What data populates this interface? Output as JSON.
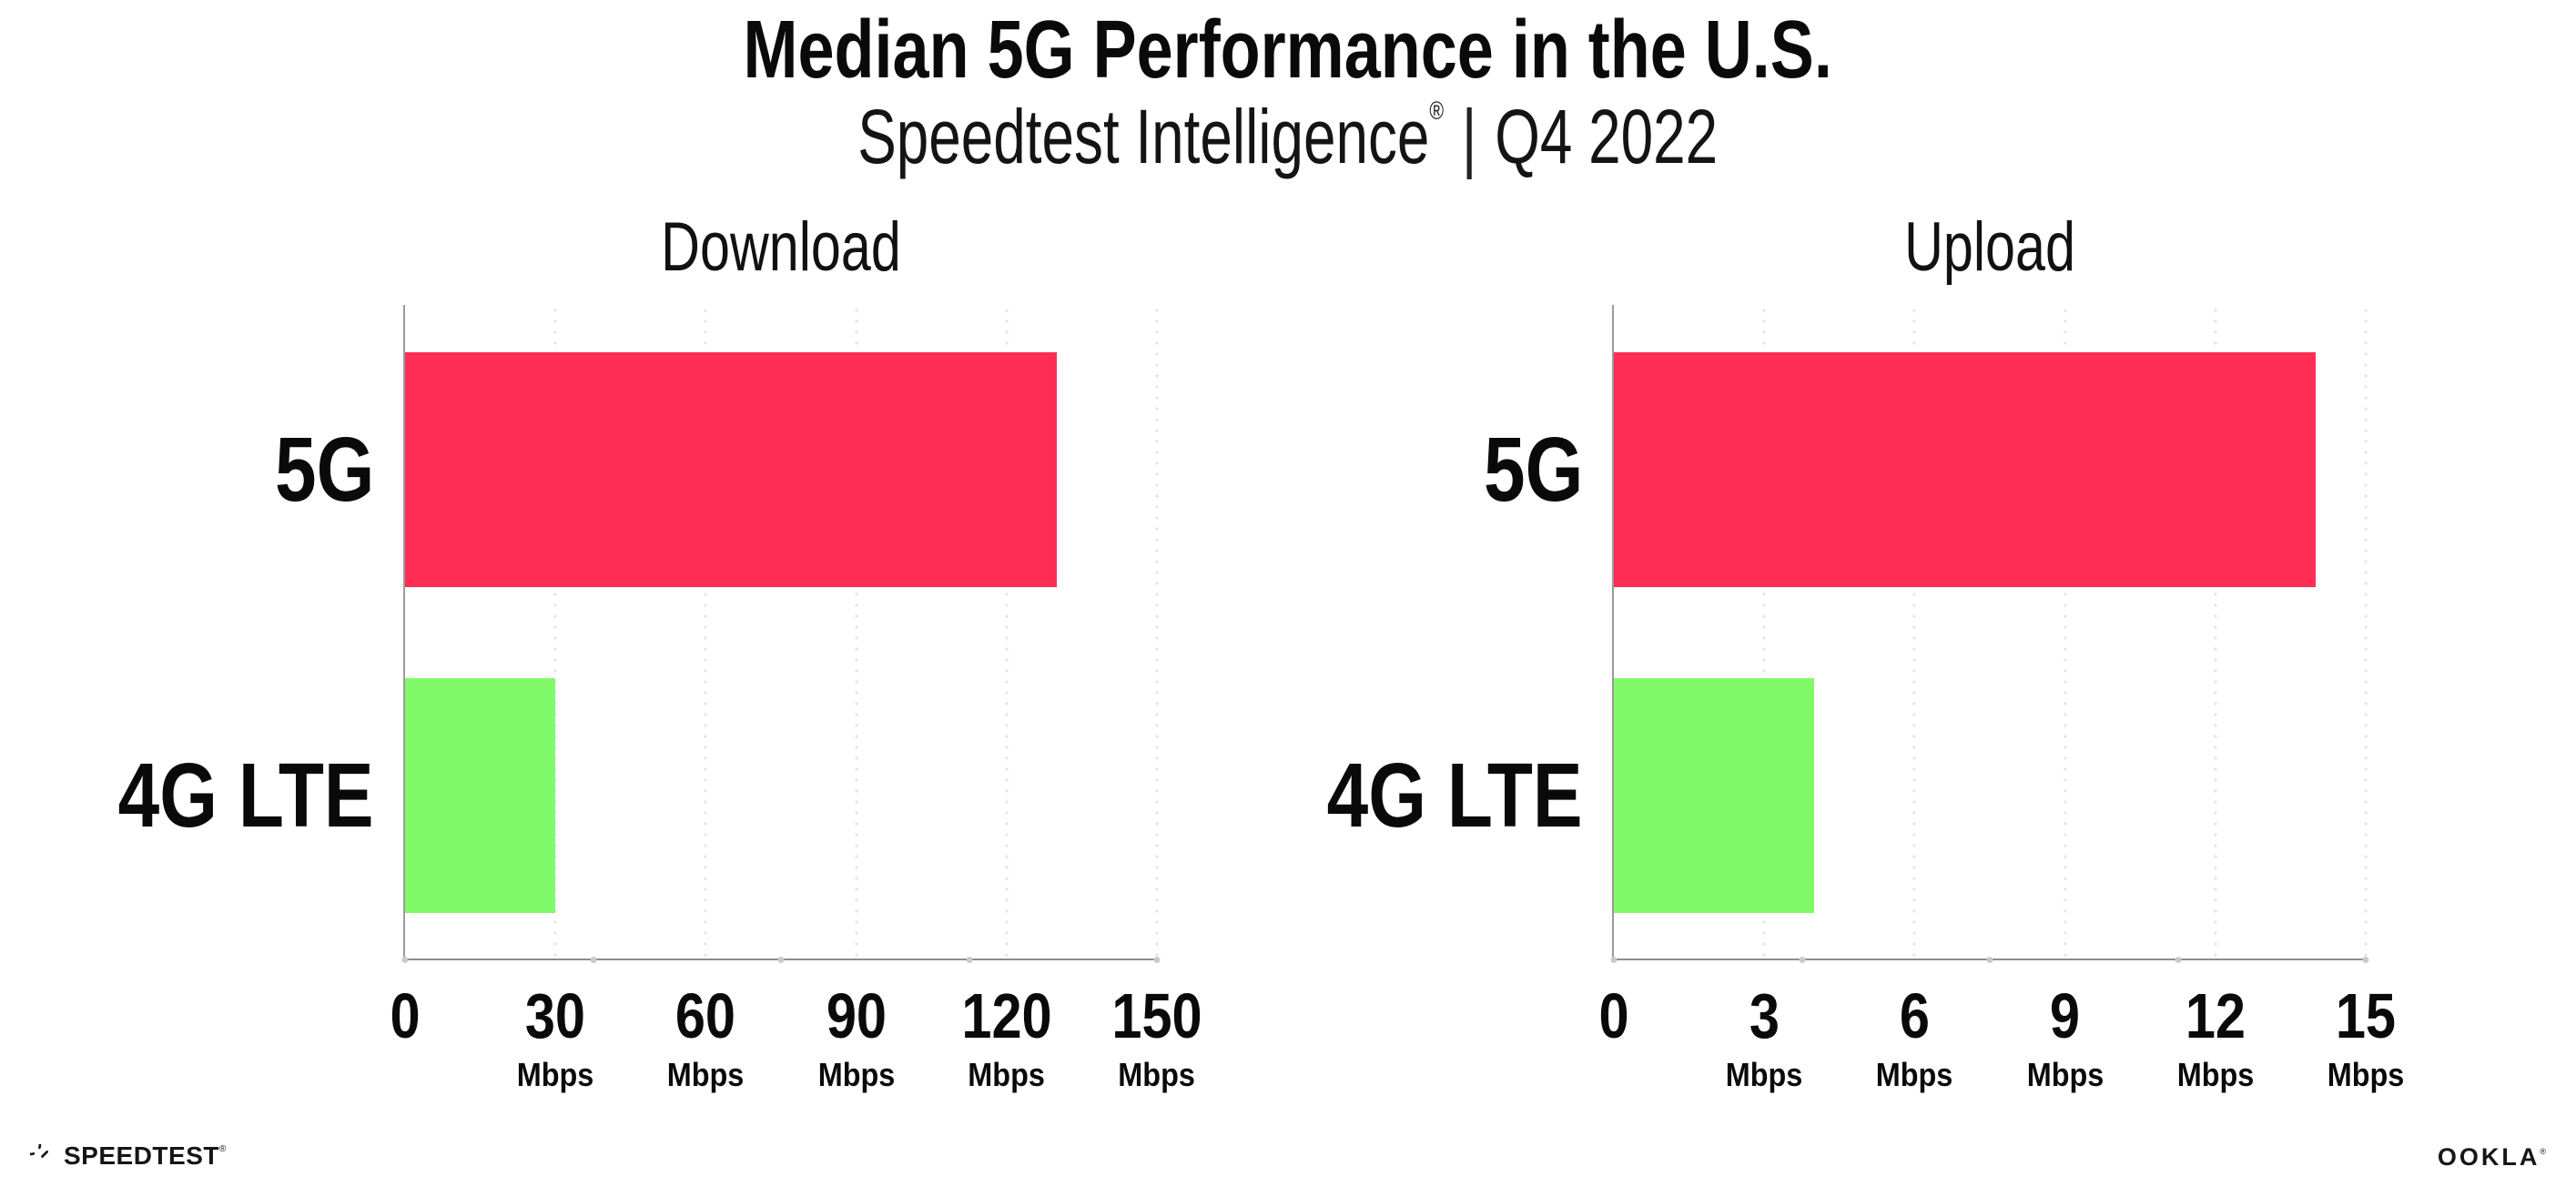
{
  "header": {
    "title": "Median 5G Performance in the U.S.",
    "subtitle": {
      "brand": "Speedtest Intelligence",
      "registered": "®",
      "separator": "|",
      "period": "Q4 2022"
    }
  },
  "colors": {
    "bar_5g": "#FD2D55",
    "bar_4g": "#80FA69",
    "x_axis": "#8C8C8C",
    "y_axis": "#9B9B9B",
    "gridline_dot": "#E2E2EA",
    "tick_dot": "#C9C9D3",
    "text": "#0A0A0A"
  },
  "chart_data": [
    {
      "type": "bar",
      "orientation": "horizontal",
      "title": "Download",
      "categories": [
        "5G",
        "4G LTE"
      ],
      "values": [
        130,
        30
      ],
      "bar_colors": [
        "#FD2D55",
        "#80FA69"
      ],
      "xlabel": "Mbps",
      "xlim": [
        0,
        150
      ],
      "xticks": [
        0,
        30,
        60,
        90,
        120,
        150
      ],
      "grid": true,
      "legend": false
    },
    {
      "type": "bar",
      "orientation": "horizontal",
      "title": "Upload",
      "categories": [
        "5G",
        "4G LTE"
      ],
      "values": [
        14,
        4
      ],
      "bar_colors": [
        "#FD2D55",
        "#80FA69"
      ],
      "xlabel": "Mbps",
      "xlim": [
        0,
        15
      ],
      "xticks": [
        0,
        3,
        6,
        9,
        12,
        15
      ],
      "grid": true,
      "legend": false
    }
  ],
  "footer": {
    "speedtest_wordmark": "SPEEDTEST",
    "speedtest_registered": "®",
    "ookla_wordmark": "OOKLA",
    "ookla_registered": "®"
  }
}
